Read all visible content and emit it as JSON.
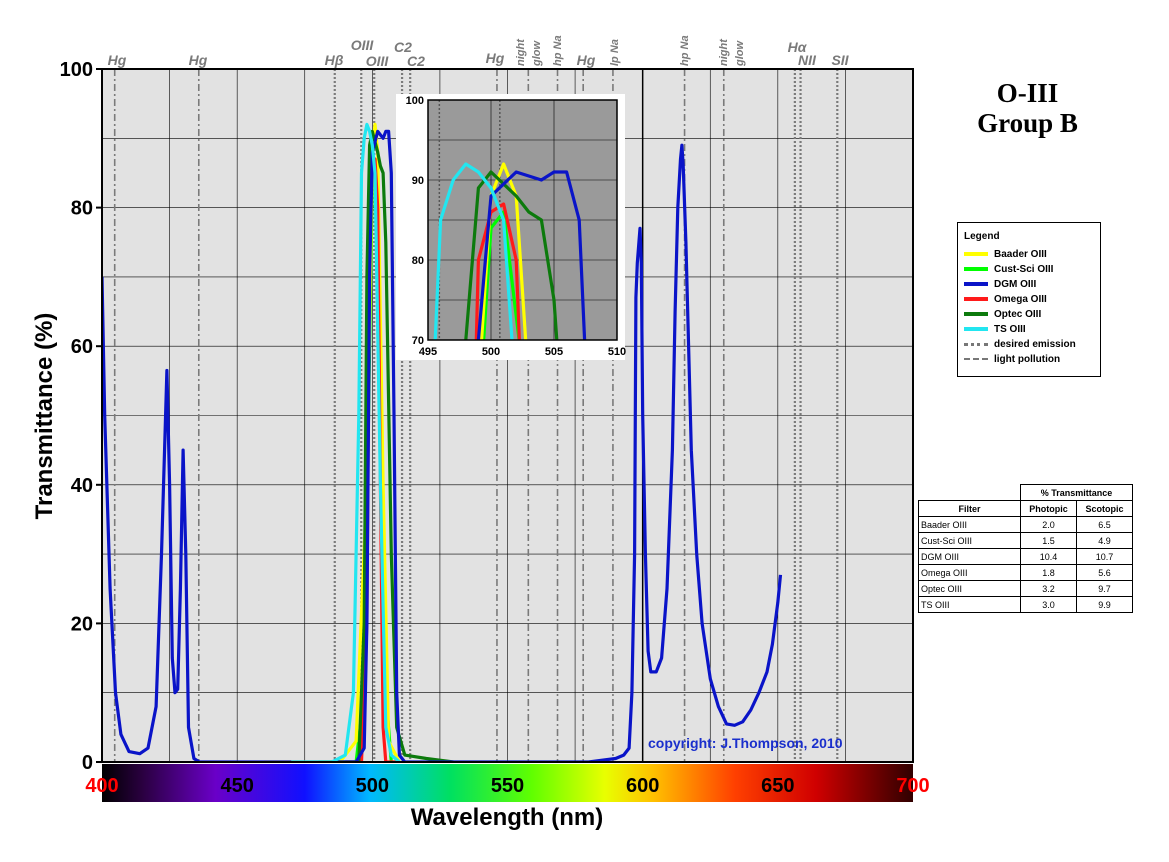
{
  "chart_data": {
    "type": "line",
    "title": "O-III",
    "subtitle": "Group B",
    "xlabel": "Wavelength (nm)",
    "ylabel": "Transmittance (%)",
    "xlim": [
      400,
      700
    ],
    "ylim": [
      0,
      100
    ],
    "x_ticks": [
      "400",
      "450",
      "500",
      "550",
      "600",
      "650",
      "700"
    ],
    "y_ticks": [
      "0",
      "20",
      "40",
      "60",
      "80",
      "100"
    ],
    "grid": true,
    "series": [
      {
        "name": "Baader OIII",
        "color": "#ffff00",
        "points": [
          [
            460,
            0
          ],
          [
            488,
            0
          ],
          [
            494,
            3
          ],
          [
            498,
            40
          ],
          [
            500,
            88
          ],
          [
            501,
            92
          ],
          [
            502,
            88
          ],
          [
            504,
            40
          ],
          [
            506,
            3
          ],
          [
            510,
            0
          ]
        ]
      },
      {
        "name": "Cust-Sci OIII",
        "color": "#00ff00",
        "points": [
          [
            480,
            0
          ],
          [
            494,
            0
          ],
          [
            497,
            10
          ],
          [
            499,
            60
          ],
          [
            500,
            84
          ],
          [
            501,
            86
          ],
          [
            503,
            60
          ],
          [
            505,
            10
          ],
          [
            507,
            0
          ]
        ]
      },
      {
        "name": "DGM OIII",
        "color": "#0a14c8",
        "points": [
          [
            400,
            70
          ],
          [
            401,
            50
          ],
          [
            403,
            25
          ],
          [
            405,
            10
          ],
          [
            407,
            4
          ],
          [
            410,
            1.5
          ],
          [
            414,
            1.2
          ],
          [
            417,
            2
          ],
          [
            420,
            8
          ],
          [
            422,
            30
          ],
          [
            424,
            56.5
          ],
          [
            425,
            40
          ],
          [
            426,
            15
          ],
          [
            427,
            10
          ],
          [
            428,
            10.5
          ],
          [
            429,
            25
          ],
          [
            430,
            45
          ],
          [
            431,
            30
          ],
          [
            432,
            5
          ],
          [
            434,
            0.5
          ],
          [
            436,
            0
          ],
          [
            480,
            0
          ],
          [
            494,
            0
          ],
          [
            497,
            2
          ],
          [
            498,
            20
          ],
          [
            499,
            70
          ],
          [
            500,
            88
          ],
          [
            502,
            91
          ],
          [
            504,
            90
          ],
          [
            505,
            91
          ],
          [
            506,
            91
          ],
          [
            507,
            85
          ],
          [
            508,
            50
          ],
          [
            509,
            10
          ],
          [
            510,
            1
          ],
          [
            512,
            0
          ],
          [
            580,
            0
          ],
          [
            590,
            0.5
          ],
          [
            593,
            1
          ],
          [
            595,
            2
          ],
          [
            596,
            10
          ],
          [
            597,
            30
          ],
          [
            597.5,
            67
          ],
          [
            598,
            72
          ],
          [
            599,
            77
          ],
          [
            599.5,
            72
          ],
          [
            600,
            50
          ],
          [
            601,
            30
          ],
          [
            602,
            16
          ],
          [
            603,
            13
          ],
          [
            605,
            13
          ],
          [
            607,
            15
          ],
          [
            609,
            25
          ],
          [
            611,
            45
          ],
          [
            612,
            65
          ],
          [
            613,
            80
          ],
          [
            614,
            87
          ],
          [
            614.5,
            89
          ],
          [
            615,
            86
          ],
          [
            616,
            75
          ],
          [
            617,
            60
          ],
          [
            618,
            45
          ],
          [
            620,
            30
          ],
          [
            622,
            20
          ],
          [
            625,
            12
          ],
          [
            628,
            8
          ],
          [
            631,
            5.5
          ],
          [
            634,
            5.3
          ],
          [
            637,
            5.8
          ],
          [
            640,
            7.5
          ],
          [
            643,
            10
          ],
          [
            646,
            13
          ],
          [
            648,
            17
          ],
          [
            650,
            23
          ],
          [
            651,
            27
          ]
        ]
      },
      {
        "name": "Omega OIII",
        "color": "#ff1a1a",
        "points": [
          [
            490,
            0
          ],
          [
            496,
            0
          ],
          [
            498,
            20
          ],
          [
            499,
            80
          ],
          [
            500,
            86
          ],
          [
            501,
            87
          ],
          [
            502,
            80
          ],
          [
            503,
            40
          ],
          [
            504,
            5
          ],
          [
            505,
            0
          ],
          [
            510,
            0
          ]
        ]
      },
      {
        "name": "Optec OIII",
        "color": "#0c7a0c",
        "points": [
          [
            485,
            0
          ],
          [
            495,
            0
          ],
          [
            497,
            20
          ],
          [
            498,
            70
          ],
          [
            499,
            89
          ],
          [
            500,
            91
          ],
          [
            502,
            88
          ],
          [
            503,
            86
          ],
          [
            504,
            85
          ],
          [
            505,
            75
          ],
          [
            507,
            30
          ],
          [
            509,
            5
          ],
          [
            512,
            1
          ],
          [
            520,
            0.5
          ],
          [
            530,
            0
          ]
        ]
      },
      {
        "name": "TS OIII",
        "color": "#22e6f0",
        "points": [
          [
            470,
            0
          ],
          [
            485,
            0
          ],
          [
            490,
            1
          ],
          [
            493,
            10
          ],
          [
            495,
            50
          ],
          [
            496,
            85
          ],
          [
            497,
            90
          ],
          [
            498,
            92
          ],
          [
            499,
            91
          ],
          [
            500,
            89
          ],
          [
            501,
            85
          ],
          [
            503,
            40
          ],
          [
            505,
            5
          ],
          [
            507,
            1
          ],
          [
            510,
            0
          ]
        ]
      }
    ],
    "emission_lines": [
      {
        "label": "Hβ",
        "x": 486.1,
        "style": "desired emission"
      },
      {
        "label": "OIII",
        "x": 495.9,
        "style": "desired emission"
      },
      {
        "label": "OIII",
        "x": 500.7,
        "style": "desired emission"
      },
      {
        "label": "C2",
        "x": 511,
        "style": "desired emission"
      },
      {
        "label": "C2",
        "x": 514,
        "style": "desired emission"
      },
      {
        "label": "Hα",
        "x": 656.3,
        "style": "desired emission"
      },
      {
        "label": "NII",
        "x": 658.4,
        "style": "desired emission"
      },
      {
        "label": "SII",
        "x": 672,
        "style": "desired emission"
      }
    ],
    "light_pollution_lines": [
      {
        "label": "Hg",
        "x": 404.7
      },
      {
        "label": "Hg",
        "x": 435.8
      },
      {
        "label": "Hg",
        "x": 546.1
      },
      {
        "label": "night glow",
        "x": 557.7
      },
      {
        "label": "hp Na",
        "x": 568.5
      },
      {
        "label": "Hg",
        "x": 578
      },
      {
        "label": "lp Na",
        "x": 589
      },
      {
        "label": "hp Na",
        "x": 615.5
      },
      {
        "label": "night glow",
        "x": 630
      }
    ],
    "inset": {
      "xlim": [
        495,
        510
      ],
      "ylim": [
        70,
        100
      ],
      "x_ticks": [
        "495",
        "500",
        "505",
        "510"
      ],
      "y_ticks": [
        "70",
        "80",
        "90",
        "100"
      ]
    }
  },
  "legend": {
    "title": "Legend",
    "items": [
      "Baader OIII",
      "Cust-Sci OIII",
      "DGM OIII",
      "Omega OIII",
      "Optec OIII",
      "TS OIII",
      "desired emission",
      "light pollution"
    ]
  },
  "table": {
    "group_header": "% Transmittance",
    "headers": [
      "Filter",
      "Photopic",
      "Scotopic"
    ],
    "rows": [
      [
        "Baader OIII",
        "2.0",
        "6.5"
      ],
      [
        "Cust-Sci OIII",
        "1.5",
        "4.9"
      ],
      [
        "DGM OIII",
        "10.4",
        "10.7"
      ],
      [
        "Omega OIII",
        "1.8",
        "5.6"
      ],
      [
        "Optec OIII",
        "3.2",
        "9.7"
      ],
      [
        "TS OIII",
        "3.0",
        "9.9"
      ]
    ]
  },
  "copyright": "copyright: J.Thompson, 2010",
  "colors": {
    "plot_bg": "#e2e2e2",
    "inset_bg": "#9a9a9a",
    "x_tick_edge": "#ff0000",
    "line_label": "#7a7a7a",
    "copyright": "#1a2fcc"
  }
}
